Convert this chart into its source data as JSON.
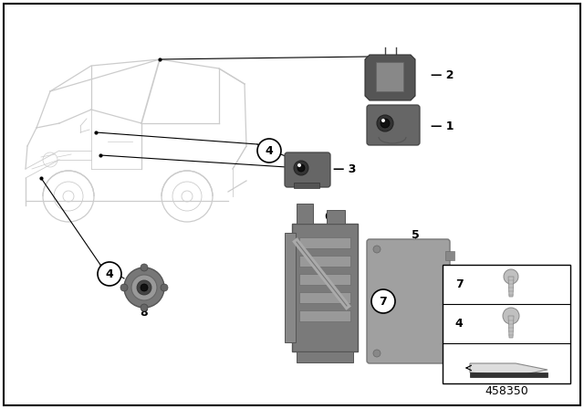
{
  "background_color": "#ffffff",
  "part_number": "458350",
  "fig_width": 6.4,
  "fig_height": 4.48,
  "dpi": 100,
  "car_color": "#cccccc",
  "car_lw": 0.8,
  "part_color_dark": "#666666",
  "part_color_mid": "#888888",
  "part_color_light": "#aaaaaa",
  "ecu_color": "#999999",
  "bracket_color": "#777777",
  "label_fontsize": 9,
  "circle_r": 0.025
}
